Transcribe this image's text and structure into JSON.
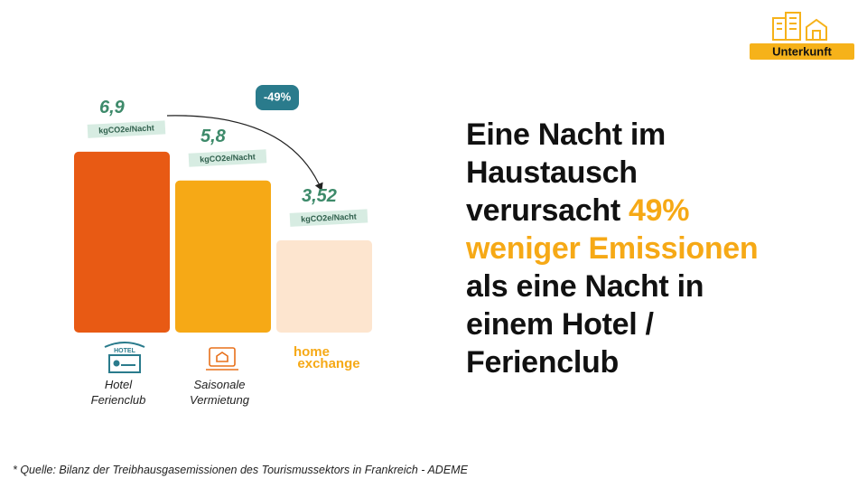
{
  "badge": "Unterkunft",
  "chart_data": {
    "type": "bar",
    "categories": [
      "Hotel Ferienclub",
      "Saisonale Vermietung",
      "home exchange"
    ],
    "values": [
      6.9,
      5.8,
      3.52
    ],
    "value_labels": [
      "6,9",
      "5,8",
      "3,52"
    ],
    "unit": "kgCO2e/Nacht",
    "colors": [
      "#e85a14",
      "#f6a916",
      "#fde5cf"
    ],
    "annotation": "-49%",
    "icon_label": "HOTEL"
  },
  "headline": {
    "highlight_color": "#f6a916",
    "lines": [
      [
        {
          "text": "Eine Nacht im"
        }
      ],
      [
        {
          "text": "Haustausch"
        }
      ],
      [
        {
          "text": "verursacht "
        },
        {
          "text": "49%",
          "highlight": true
        }
      ],
      [
        {
          "text": "weniger Emissionen",
          "highlight": true
        }
      ],
      [
        {
          "text": "als eine Nacht in"
        }
      ],
      [
        {
          "text": "einem Hotel /"
        }
      ],
      [
        {
          "text": "Ferienclub"
        }
      ]
    ]
  },
  "footnote": "* Quelle: Bilanz der Treibhausgasemissionen des Tourismussektors in Frankreich - ADEME"
}
